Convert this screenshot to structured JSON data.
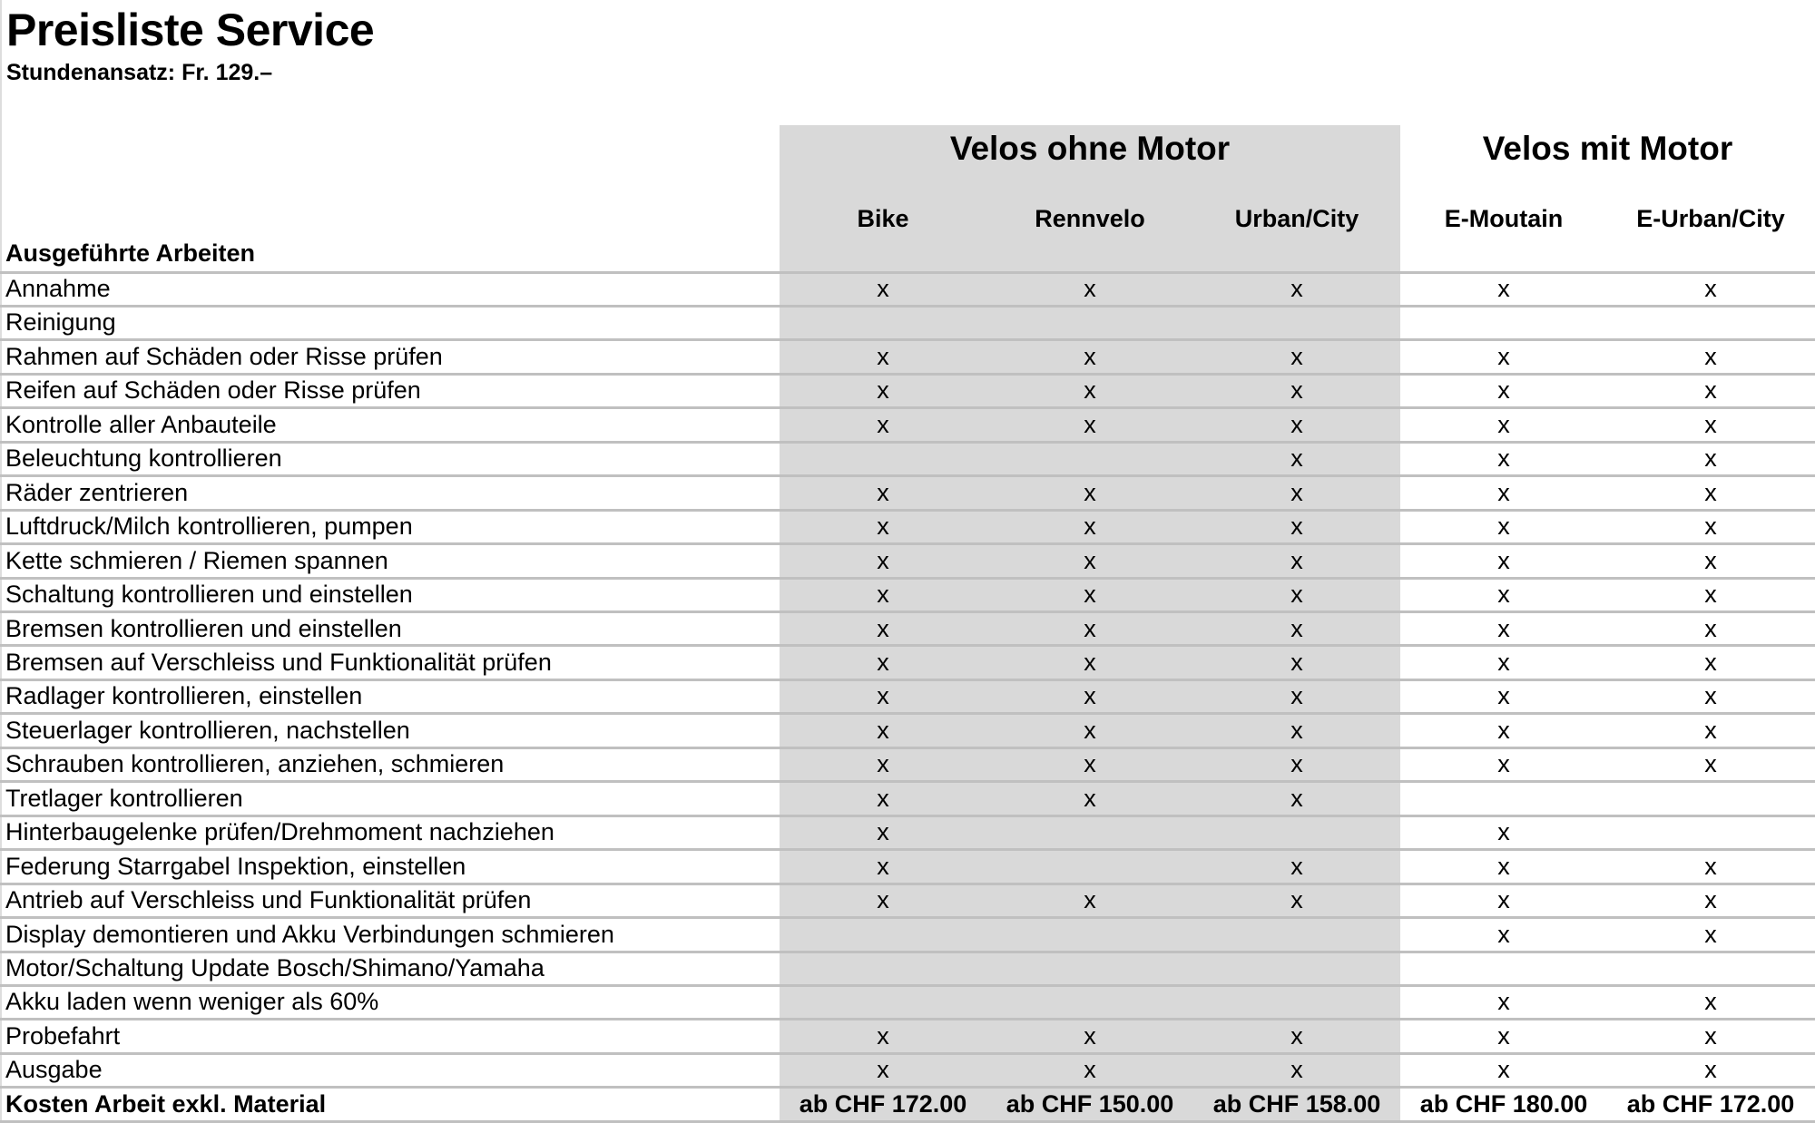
{
  "title": "Preisliste Service",
  "subtitle": "Stundenansatz: Fr. 129.–",
  "colors": {
    "band": "#d9d9d9",
    "grid": "#c0c0c0"
  },
  "groups": [
    {
      "label": "Velos ohne Motor"
    },
    {
      "label": "Velos mit Motor"
    }
  ],
  "columns": [
    "Bike",
    "Rennvelo",
    "Urban/City",
    "E-Moutain",
    "E-Urban/City"
  ],
  "work_header": "Ausgeführte Arbeiten",
  "rows": [
    {
      "label": "Annahme",
      "cells": [
        "x",
        "x",
        "x",
        "x",
        "x"
      ]
    },
    {
      "label": "Reinigung",
      "cells": [
        "",
        "",
        "",
        "",
        ""
      ]
    },
    {
      "label": "Rahmen auf Schäden oder Risse prüfen",
      "cells": [
        "x",
        "x",
        "x",
        "x",
        "x"
      ]
    },
    {
      "label": "Reifen auf Schäden oder Risse prüfen",
      "cells": [
        "x",
        "x",
        "x",
        "x",
        "x"
      ]
    },
    {
      "label": "Kontrolle aller Anbauteile",
      "cells": [
        "x",
        "x",
        "x",
        "x",
        "x"
      ]
    },
    {
      "label": "Beleuchtung kontrollieren",
      "cells": [
        "",
        "",
        "x",
        "x",
        "x"
      ]
    },
    {
      "label": "Räder zentrieren",
      "cells": [
        "x",
        "x",
        "x",
        "x",
        "x"
      ]
    },
    {
      "label": "Luftdruck/Milch kontrollieren, pumpen",
      "cells": [
        "x",
        "x",
        "x",
        "x",
        "x"
      ]
    },
    {
      "label": "Kette schmieren / Riemen spannen",
      "cells": [
        "x",
        "x",
        "x",
        "x",
        "x"
      ]
    },
    {
      "label": "Schaltung kontrollieren und einstellen",
      "cells": [
        "x",
        "x",
        "x",
        "x",
        "x"
      ]
    },
    {
      "label": "Bremsen kontrollieren und einstellen",
      "cells": [
        "x",
        "x",
        "x",
        "x",
        "x"
      ]
    },
    {
      "label": "Bremsen auf Verschleiss und Funktionalität prüfen",
      "cells": [
        "x",
        "x",
        "x",
        "x",
        "x"
      ]
    },
    {
      "label": "Radlager kontrollieren, einstellen",
      "cells": [
        "x",
        "x",
        "x",
        "x",
        "x"
      ]
    },
    {
      "label": "Steuerlager kontrollieren, nachstellen",
      "cells": [
        "x",
        "x",
        "x",
        "x",
        "x"
      ]
    },
    {
      "label": "Schrauben kontrollieren, anziehen, schmieren",
      "cells": [
        "x",
        "x",
        "x",
        "x",
        "x"
      ]
    },
    {
      "label": "Tretlager kontrollieren",
      "cells": [
        "x",
        "x",
        "x",
        "",
        ""
      ]
    },
    {
      "label": "Hinterbaugelenke prüfen/Drehmoment nachziehen",
      "cells": [
        "x",
        "",
        "",
        "x",
        ""
      ]
    },
    {
      "label": "Federung Starrgabel Inspektion, einstellen",
      "cells": [
        "x",
        "",
        "x",
        "x",
        "x"
      ]
    },
    {
      "label": "Antrieb auf Verschleiss und Funktionalität prüfen",
      "cells": [
        "x",
        "x",
        "x",
        "x",
        "x"
      ]
    },
    {
      "label": "Display demontieren und Akku Verbindungen schmieren",
      "cells": [
        "",
        "",
        "",
        "x",
        "x"
      ]
    },
    {
      "label": "Motor/Schaltung Update Bosch/Shimano/Yamaha",
      "cells": [
        "",
        "",
        "",
        "",
        ""
      ]
    },
    {
      "label": "Akku laden wenn weniger als 60%",
      "cells": [
        "",
        "",
        "",
        "x",
        "x"
      ]
    },
    {
      "label": "Probefahrt",
      "cells": [
        "x",
        "x",
        "x",
        "x",
        "x"
      ]
    },
    {
      "label": "Ausgabe",
      "cells": [
        "x",
        "x",
        "x",
        "x",
        "x"
      ]
    }
  ],
  "total": {
    "label": "Kosten Arbeit exkl. Material",
    "cells": [
      "ab CHF 172.00",
      "ab CHF 150.00",
      "ab CHF 158.00",
      "ab CHF 180.00",
      "ab CHF 172.00"
    ]
  }
}
